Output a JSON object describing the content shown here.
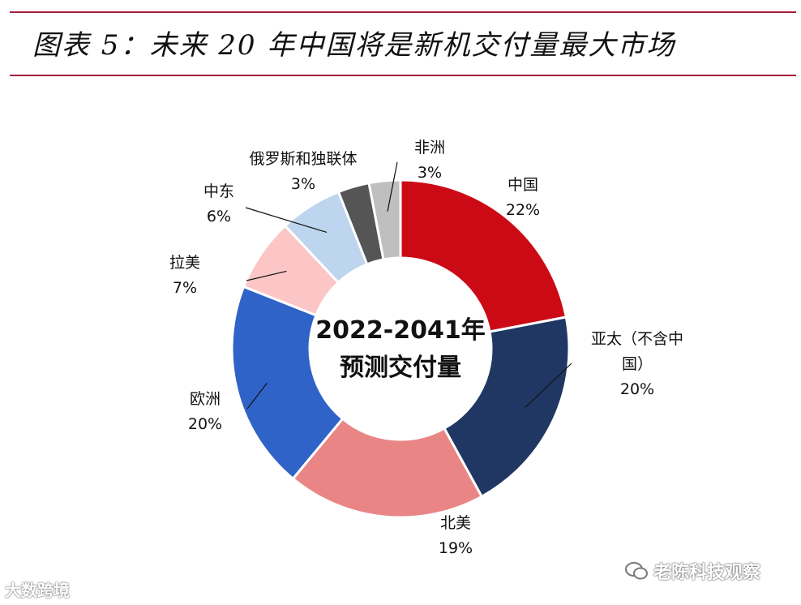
{
  "header": {
    "title": "图表 5：未来 20 年中国将是新机交付量最大市场"
  },
  "chart_data": {
    "type": "pie",
    "variant": "donut",
    "center_label": [
      "2022-2041年",
      "预测交付量"
    ],
    "unit": "%",
    "slices": [
      {
        "name": "中国",
        "label": [
          "中国"
        ],
        "value": 22,
        "color": "#cc0a16"
      },
      {
        "name": "亚太（不含中国）",
        "label": [
          "亚太（不含中",
          "国）"
        ],
        "value": 20,
        "color": "#213763"
      },
      {
        "name": "北美",
        "label": [
          "北美"
        ],
        "value": 19,
        "color": "#e98585"
      },
      {
        "name": "欧洲",
        "label": [
          "欧洲"
        ],
        "value": 20,
        "color": "#2f63c8"
      },
      {
        "name": "拉美",
        "label": [
          "拉美"
        ],
        "value": 7,
        "color": "#fcc6c6"
      },
      {
        "name": "中东",
        "label": [
          "中东"
        ],
        "value": 6,
        "color": "#bdd5ee"
      },
      {
        "name": "俄罗斯和独联体",
        "label": [
          "俄罗斯和独联体"
        ],
        "value": 3,
        "color": "#555555"
      },
      {
        "name": "非洲",
        "label": [
          "非洲"
        ],
        "value": 3,
        "color": "#bfbfbf"
      }
    ]
  },
  "watermarks": {
    "left": "大数跨境",
    "right": "老陈科技观察",
    "right_icon": "wechat-icon"
  }
}
